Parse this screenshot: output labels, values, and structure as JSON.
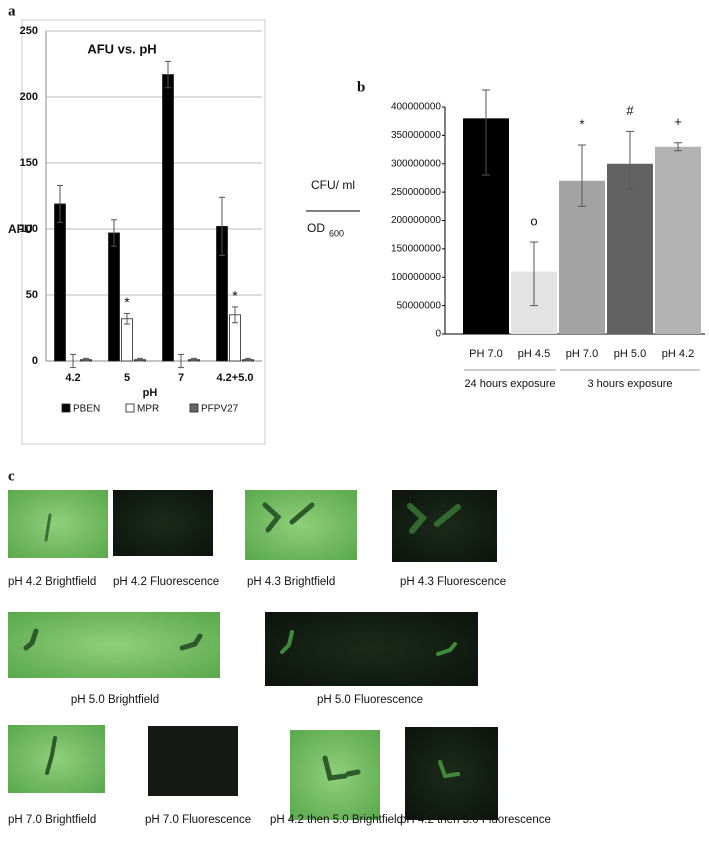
{
  "chart_data": [
    {
      "type": "bar",
      "title": "AFU vs. pH",
      "xlabel": "pH",
      "ylabel": "AFU",
      "categories": [
        "4.2",
        "5",
        "7",
        "4.2+5.0"
      ],
      "series": [
        {
          "name": "PBEN",
          "color": "#000000",
          "values": [
            119,
            97,
            217,
            102
          ],
          "errors": [
            14,
            10,
            10,
            22
          ]
        },
        {
          "name": "MPR",
          "color": "#ffffff",
          "values": [
            0,
            32,
            0,
            35
          ],
          "errors": [
            5,
            4,
            5,
            6
          ]
        },
        {
          "name": "PFPV27",
          "color": "#666666",
          "values": [
            1,
            1,
            1,
            1
          ],
          "errors": [
            1,
            1,
            1,
            1
          ]
        }
      ],
      "annotations": [
        {
          "text": "*",
          "series": 1,
          "category": 1
        },
        {
          "text": "*",
          "series": 1,
          "category": 3
        }
      ],
      "ylim": [
        0,
        250
      ],
      "yticks": [
        0,
        50,
        100,
        150,
        200,
        250
      ],
      "grid": true,
      "legend": "bottom"
    },
    {
      "type": "bar",
      "ylabel": "CFU/ ml",
      "ylabel_denominator": {
        "base": "OD",
        "sub": "600"
      },
      "categories": [
        "PH 7.0",
        "pH 4.5",
        "pH 7.0",
        "pH 5.0",
        "pH 4.2"
      ],
      "values": [
        380000000,
        110000000,
        270000000,
        300000000,
        330000000
      ],
      "error_low": [
        100000000,
        60000000,
        45000000,
        45000000,
        7000000
      ],
      "error_high": [
        50000000,
        52000000,
        63000000,
        57000000,
        7000000
      ],
      "colors": [
        "#000000",
        "#e3e3e3",
        "#a3a3a3",
        "#626262",
        "#b3b3b3"
      ],
      "value_annotations": [
        null,
        "o",
        "*",
        "#",
        "+"
      ],
      "groups": [
        {
          "label": "24 hours exposure",
          "start": 0,
          "count": 2
        },
        {
          "label": "3 hours exposure",
          "start": 2,
          "count": 3
        }
      ],
      "ylim": [
        0,
        400000000
      ],
      "yticks": [
        0,
        50000000,
        100000000,
        150000000,
        200000000,
        250000000,
        300000000,
        350000000,
        400000000
      ],
      "grid": false
    }
  ],
  "panel_labels": [
    "a",
    "b",
    "c"
  ],
  "images": [
    {
      "caption": "pH 4.2 Brightfield"
    },
    {
      "caption": "pH 4.2 Fluorescence"
    },
    {
      "caption": "pH 4.3 Brightfield"
    },
    {
      "caption": "pH 4.3 Fluorescence"
    },
    {
      "caption": "pH 5.0 Brightfield"
    },
    {
      "caption": "pH 5.0 Fluorescence"
    },
    {
      "caption": "pH 7.0 Brightfield"
    },
    {
      "caption": "pH 7.0 Fluorescence"
    },
    {
      "caption": "pH 4.2 then 5.0 Brightfield"
    },
    {
      "caption": "pH 4.2 then 5.0 Fluorescence"
    }
  ]
}
